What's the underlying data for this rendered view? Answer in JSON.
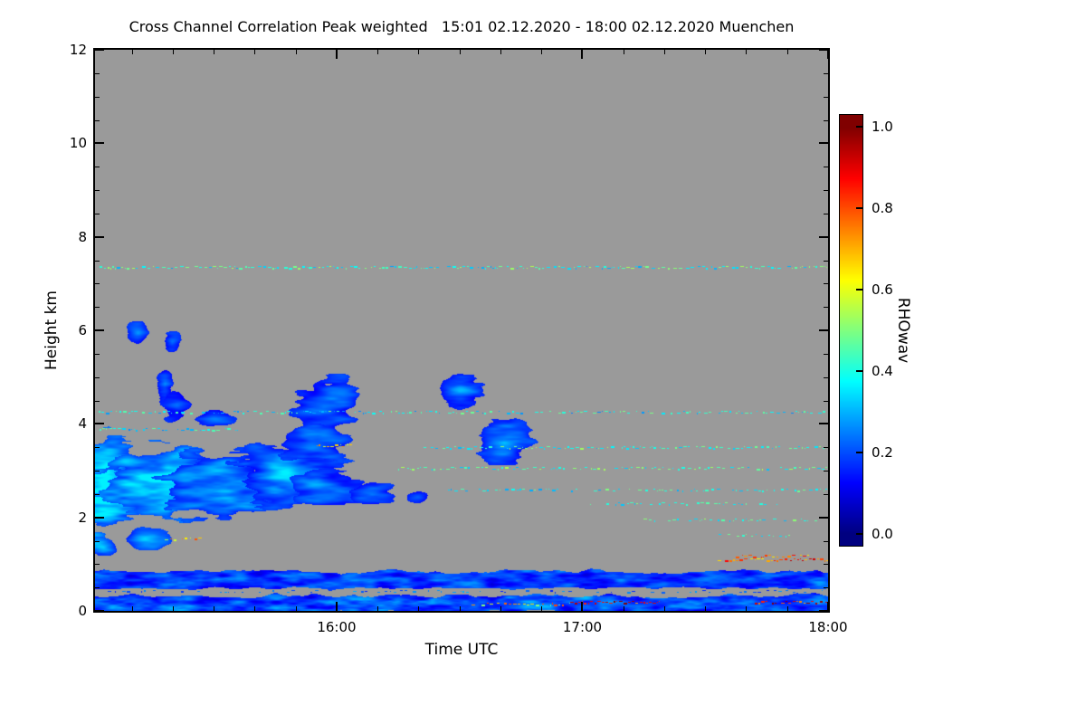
{
  "chart_data": {
    "type": "heatmap",
    "title": "Cross Channel Correlation Peak weighted   15:01 02.12.2020 - 18:00 02.12.2020 Muenchen",
    "station": "Muenchen",
    "time_start": "15:01 02.12.2020",
    "time_end": "18:00 02.12.2020",
    "xlabel": "Time UTC",
    "ylabel": "Height km",
    "x_range_hours": [
      15.0167,
      18.0
    ],
    "ylim": [
      0,
      12
    ],
    "x_ticks": [
      {
        "t": 16,
        "label": "16:00"
      },
      {
        "t": 17,
        "label": "17:00"
      },
      {
        "t": 18,
        "label": "18:00"
      }
    ],
    "x_minor_step_hours": 0.166667,
    "y_ticks": [
      0,
      2,
      4,
      6,
      8,
      10,
      12
    ],
    "y_minor_step": 0.5,
    "grid": false,
    "no_data_color": "#9a9a9a",
    "colorbar": {
      "label": "RHOwav",
      "colormap": "jet",
      "range": [
        -0.03,
        1.03
      ],
      "ticks": [
        {
          "v": 0.0,
          "label": "0.0"
        },
        {
          "v": 0.2,
          "label": "0.2"
        },
        {
          "v": 0.4,
          "label": "0.4"
        },
        {
          "v": 0.6,
          "label": "0.6"
        },
        {
          "v": 0.8,
          "label": "0.8"
        },
        {
          "v": 1.0,
          "label": "1.0"
        }
      ]
    },
    "clouds": [
      {
        "t": 15.06,
        "h": 2.7,
        "rt": 0.22,
        "rh": 1.25,
        "v": 0.2,
        "gain": 0.3,
        "rough": 0.8
      },
      {
        "t": 15.3,
        "h": 2.8,
        "rt": 0.3,
        "rh": 1.0,
        "v": 0.2,
        "gain": 0.3,
        "rough": 0.8
      },
      {
        "t": 15.55,
        "h": 2.7,
        "rt": 0.33,
        "rh": 0.95,
        "v": 0.17,
        "gain": 0.22,
        "rough": 0.85
      },
      {
        "t": 15.8,
        "h": 2.95,
        "rt": 0.28,
        "rh": 0.9,
        "v": 0.16,
        "gain": 0.18,
        "rough": 0.85
      },
      {
        "t": 15.98,
        "h": 2.6,
        "rt": 0.2,
        "rh": 0.6,
        "v": 0.16,
        "gain": 0.15,
        "rough": 0.8
      },
      {
        "t": 16.14,
        "h": 2.5,
        "rt": 0.12,
        "rh": 0.35,
        "v": 0.15,
        "gain": 0.12,
        "rough": 0.8
      },
      {
        "t": 15.95,
        "h": 4.4,
        "rt": 0.17,
        "rh": 0.75,
        "v": 0.15,
        "gain": 0.12,
        "rough": 0.9
      },
      {
        "t": 15.9,
        "h": 3.6,
        "rt": 0.2,
        "rh": 0.5,
        "v": 0.16,
        "gain": 0.15,
        "rough": 0.85
      },
      {
        "t": 15.19,
        "h": 5.95,
        "rt": 0.055,
        "rh": 0.33,
        "v": 0.15,
        "gain": 0.12,
        "rough": 0.7
      },
      {
        "t": 15.33,
        "h": 5.75,
        "rt": 0.045,
        "rh": 0.3,
        "v": 0.15,
        "gain": 0.12,
        "rough": 0.7
      },
      {
        "t": 15.3,
        "h": 4.85,
        "rt": 0.035,
        "rh": 0.55,
        "v": 0.13,
        "gain": 0.1,
        "rough": 0.9
      },
      {
        "t": 15.35,
        "h": 4.4,
        "rt": 0.07,
        "rh": 0.45,
        "v": 0.14,
        "gain": 0.1,
        "rough": 0.85
      },
      {
        "t": 15.5,
        "h": 4.15,
        "rt": 0.1,
        "rh": 0.3,
        "v": 0.15,
        "gain": 0.1,
        "rough": 0.85
      },
      {
        "t": 16.5,
        "h": 4.7,
        "rt": 0.12,
        "rh": 0.5,
        "v": 0.15,
        "gain": 0.15,
        "rough": 0.85
      },
      {
        "t": 16.68,
        "h": 3.6,
        "rt": 0.13,
        "rh": 0.68,
        "v": 0.15,
        "gain": 0.15,
        "rough": 0.85
      },
      {
        "t": 16.33,
        "h": 2.45,
        "rt": 0.06,
        "rh": 0.18,
        "v": 0.15,
        "gain": 0.1,
        "rough": 0.7
      },
      {
        "t": 15.22,
        "h": 1.55,
        "rt": 0.13,
        "rh": 0.3,
        "v": 0.18,
        "gain": 0.18,
        "rough": 0.8
      },
      {
        "t": 15.05,
        "h": 1.35,
        "rt": 0.08,
        "rh": 0.25,
        "v": 0.18,
        "gain": 0.18,
        "rough": 0.8
      }
    ],
    "surface_layers": [
      {
        "h0": 0.5,
        "h1": 0.85,
        "v": 0.18,
        "var": 0.12
      },
      {
        "h0": 0.0,
        "h1": 0.32,
        "v": 0.2,
        "var": 0.14
      }
    ],
    "speckle_rows": [
      {
        "h": 7.35,
        "t0": 15.03,
        "t1": 18.0,
        "p": 0.45,
        "vmin": 0.28,
        "vmax": 0.55
      },
      {
        "h": 4.25,
        "t0": 15.03,
        "t1": 18.0,
        "p": 0.3,
        "vmin": 0.25,
        "vmax": 0.5
      },
      {
        "h": 3.9,
        "t0": 15.03,
        "t1": 15.6,
        "p": 0.3,
        "vmin": 0.25,
        "vmax": 0.5
      },
      {
        "h": 3.5,
        "t0": 16.35,
        "t1": 18.0,
        "p": 0.4,
        "vmin": 0.3,
        "vmax": 0.55
      },
      {
        "h": 3.05,
        "t0": 16.25,
        "t1": 18.0,
        "p": 0.35,
        "vmin": 0.3,
        "vmax": 0.55
      },
      {
        "h": 2.6,
        "t0": 16.45,
        "t1": 18.0,
        "p": 0.3,
        "vmin": 0.28,
        "vmax": 0.5
      },
      {
        "h": 2.3,
        "t0": 17.0,
        "t1": 17.8,
        "p": 0.22,
        "vmin": 0.3,
        "vmax": 0.5
      },
      {
        "h": 1.95,
        "t0": 17.25,
        "t1": 17.95,
        "p": 0.28,
        "vmin": 0.3,
        "vmax": 0.55
      },
      {
        "h": 1.62,
        "t0": 17.55,
        "t1": 17.85,
        "p": 0.2,
        "vmin": 0.3,
        "vmax": 0.5
      },
      {
        "h": 3.55,
        "t0": 15.92,
        "t1": 16.06,
        "p": 0.6,
        "vmin": 0.55,
        "vmax": 0.8
      },
      {
        "h": 1.55,
        "t0": 15.28,
        "t1": 15.45,
        "p": 0.35,
        "vmin": 0.5,
        "vmax": 0.8
      },
      {
        "h": 1.1,
        "t0": 17.55,
        "t1": 18.0,
        "p": 0.6,
        "vmin": 0.6,
        "vmax": 0.95
      },
      {
        "h": 1.18,
        "t0": 17.62,
        "t1": 17.92,
        "p": 0.45,
        "vmin": 0.55,
        "vmax": 0.9
      },
      {
        "h": 0.2,
        "t0": 16.95,
        "t1": 17.32,
        "p": 0.7,
        "vmin": 0.7,
        "vmax": 1.0
      },
      {
        "h": 0.2,
        "t0": 17.7,
        "t1": 18.0,
        "p": 0.7,
        "vmin": 0.7,
        "vmax": 1.0
      },
      {
        "h": 0.15,
        "t0": 16.55,
        "t1": 16.95,
        "p": 0.35,
        "vmin": 0.45,
        "vmax": 0.85
      },
      {
        "h": 0.42,
        "t0": 15.03,
        "t1": 18.0,
        "p": 0.12,
        "vmin": 0.15,
        "vmax": 0.3
      }
    ]
  }
}
